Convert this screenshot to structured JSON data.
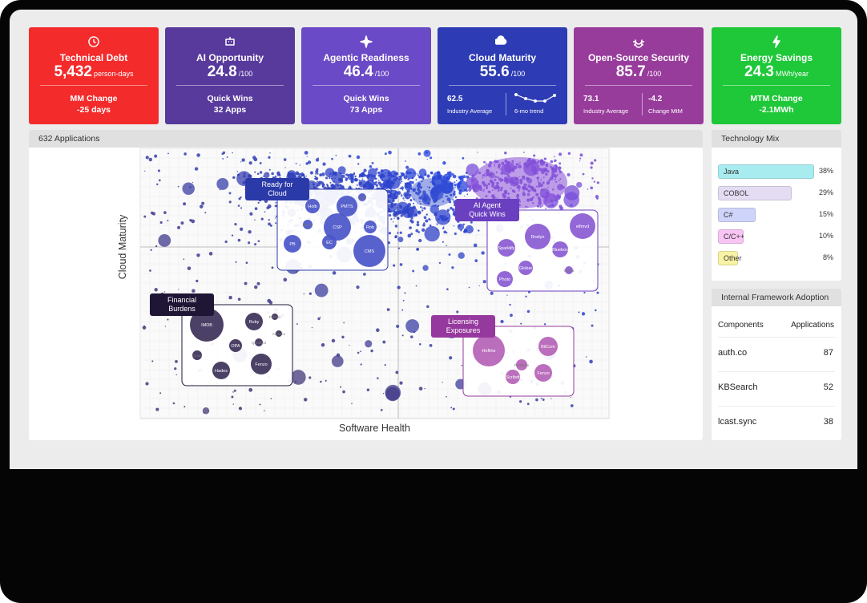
{
  "kpis": [
    {
      "title": "Technical Debt",
      "value": "5,432",
      "unit": "person-days",
      "color": "#f42b2b",
      "footer": {
        "label": "MM Change",
        "value": "-25 days"
      }
    },
    {
      "title": "AI Opportunity",
      "value": "24.8",
      "unit": "/100",
      "color": "#573a9c",
      "footer": {
        "label": "Quick Wins",
        "value": "32 Apps"
      }
    },
    {
      "title": "Agentic Readiness",
      "value": "46.4",
      "unit": "/100",
      "color": "#6a4ac6",
      "footer": {
        "label": "Quick Wins",
        "value": "73 Apps"
      }
    },
    {
      "title": "Cloud Maturity",
      "value": "55.6",
      "unit": "/100",
      "color": "#2d3cb4",
      "stats": [
        {
          "value": "62.5",
          "label": "Industry Average"
        },
        {
          "label": "6-mo trend"
        }
      ]
    },
    {
      "title": "Open-Source Security",
      "value": "85.7",
      "unit": "/100",
      "color": "#983c9c",
      "stats": [
        {
          "value": "73.1",
          "label": "Industry Average"
        },
        {
          "value": "-4.2",
          "label": "Change MtM"
        }
      ]
    },
    {
      "title": "Energy Savings",
      "value": "24.3",
      "unit": "MWh/year",
      "color": "#1ec838",
      "footer": {
        "label": "MTM Change",
        "value": "-2.1MWh"
      }
    }
  ],
  "scatter_panel": {
    "title": "632 Applications",
    "x_label": "Software Health",
    "y_label": "Cloud Maturity",
    "callouts": [
      {
        "label": "Ready for Cloud",
        "color": "#2a3aa8",
        "bubble_color": "#4a55c8",
        "apps": [
          "Holb",
          "PMTS",
          "Logo",
          "CSP",
          "Rob",
          "Sentry",
          "PB",
          "EC",
          "CMS"
        ]
      },
      {
        "label": "AI Agent Quick Wins",
        "color": "#6a3fc0",
        "bubble_color": "#8a5ad2",
        "apps": [
          "elfmvd",
          "Roslyn",
          "Sparklify",
          "Bluebox",
          "Globar",
          "Photo",
          "Gorilla"
        ]
      },
      {
        "label": "Financial Burdens",
        "color": "#1f1636",
        "bubble_color": "#3c3058",
        "apps": [
          "IMDB",
          "Ruby",
          "Python",
          "Alfresco",
          "OPA",
          "Qanalyst",
          "Cloud",
          "Hades",
          "Fenzo"
        ]
      },
      {
        "label": "Licensing Exposures",
        "color": "#96399e",
        "bubble_color": "#b462b6",
        "apps": [
          "Hofline",
          "BilCom",
          "Perlstore",
          "Scribdt",
          "Fenzo"
        ]
      }
    ]
  },
  "technology_mix": {
    "title": "Technology Mix",
    "items": [
      "Java",
      "COBOL",
      "C#",
      "C/C++",
      "Other"
    ],
    "colors": [
      "#a8ecf0",
      "#e4dcf2",
      "#cfd4fa",
      "#f8c4f4",
      "#f8f2a4"
    ],
    "values": [
      38,
      29,
      15,
      10,
      8
    ],
    "value_labels": [
      "38%",
      "29%",
      "15%",
      "10%",
      "8%"
    ]
  },
  "framework_adoption": {
    "title": "Internal Framework Adoption",
    "columns": [
      "Components",
      "Applications"
    ],
    "rows": [
      [
        "auth.co",
        "87"
      ],
      [
        "KBSearch",
        "52"
      ],
      [
        "lcast.sync",
        "38"
      ]
    ]
  }
}
